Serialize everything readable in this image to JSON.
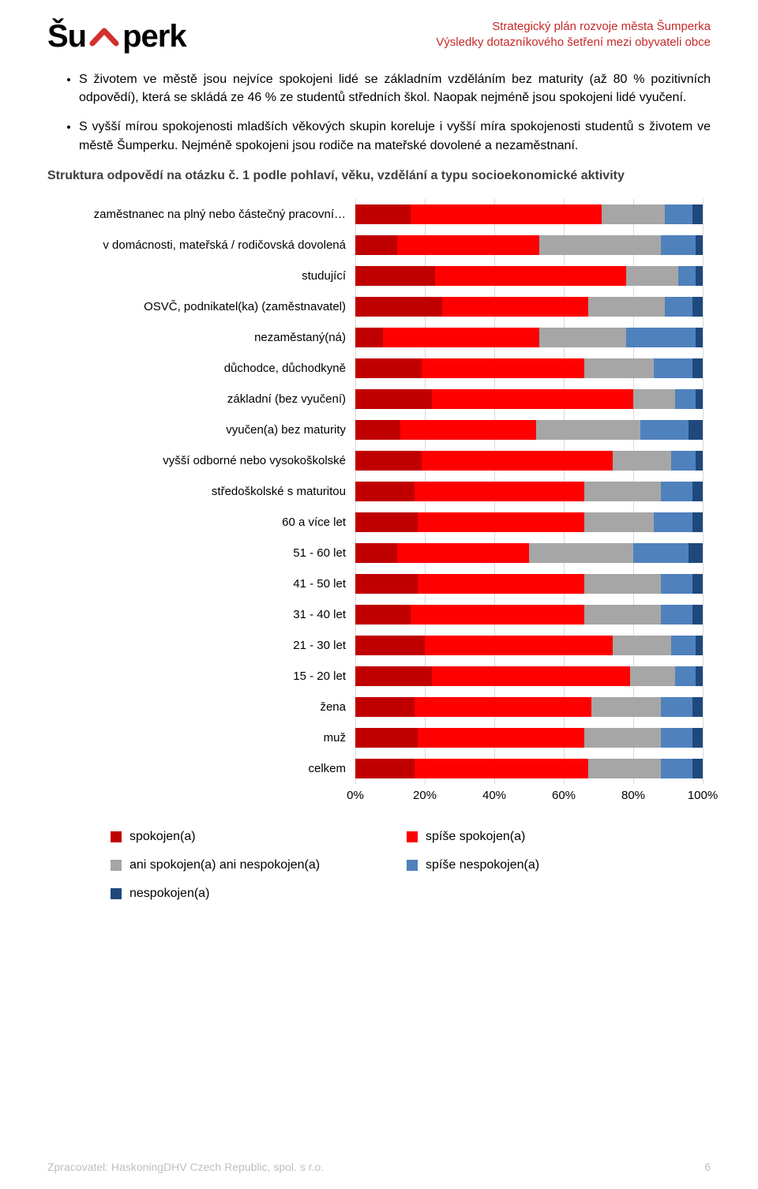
{
  "header": {
    "logo_prefix": "Šu",
    "logo_suffix": "perk",
    "logo_roof_color": "#d32f2f",
    "title_line1": "Strategický plán rozvoje města Šumperka",
    "title_line2": "Výsledky dotazníkového šetření mezi obyvateli obce",
    "title_color": "#c62828"
  },
  "bullets": [
    "S životem ve městě jsou nejvíce spokojeni lidé se základním vzděláním bez maturity (až 80 % pozitivních odpovědí), která se skládá ze 46 % ze studentů středních škol. Naopak nejméně jsou spokojeni lidé vyučení.",
    "S vyšší mírou spokojenosti mladších věkových skupin koreluje i vyšší míra spokojenosti studentů s životem ve městě Šumperku. Nejméně spokojeni jsou rodiče na mateřské dovolené a nezaměstnaní."
  ],
  "chart": {
    "title": "Struktura odpovědí na otázku č. 1 podle pohlaví, věku, vzdělání a typu socioekonomické aktivity",
    "type": "stacked_bar_horizontal",
    "x_ticks": [
      "0%",
      "20%",
      "40%",
      "60%",
      "80%",
      "100%"
    ],
    "x_tick_positions": [
      0,
      20,
      40,
      60,
      80,
      100
    ],
    "grid_color": "#d9d9d9",
    "background_color": "#ffffff",
    "label_fontsize": 15,
    "axis_fontsize": 15,
    "series": [
      {
        "key": "spokojen",
        "label": "spokojen(a)",
        "color": "#c00000"
      },
      {
        "key": "spise_spokojen",
        "label": "spíše spokojen(a)",
        "color": "#ff0000"
      },
      {
        "key": "ani_ani",
        "label": "ani spokojen(a) ani nespokojen(a)",
        "color": "#a6a6a6"
      },
      {
        "key": "spise_nespokojen",
        "label": "spíše nespokojen(a)",
        "color": "#4f81bd"
      },
      {
        "key": "nespokojen",
        "label": "nespokojen(a)",
        "color": "#1f497d"
      }
    ],
    "categories": [
      {
        "label": "zaměstnanec na plný nebo částečný pracovní…",
        "values": [
          16,
          55,
          18,
          8,
          3
        ]
      },
      {
        "label": "v domácnosti, mateřská / rodičovská dovolená",
        "values": [
          12,
          41,
          35,
          10,
          2
        ]
      },
      {
        "label": "studující",
        "values": [
          23,
          55,
          15,
          5,
          2
        ]
      },
      {
        "label": "OSVČ, podnikatel(ka) (zaměstnavatel)",
        "values": [
          25,
          42,
          22,
          8,
          3
        ]
      },
      {
        "label": "nezaměstaný(ná)",
        "values": [
          8,
          45,
          25,
          20,
          2
        ]
      },
      {
        "label": "důchodce, důchodkyně",
        "values": [
          19,
          47,
          20,
          11,
          3
        ]
      },
      {
        "label": "základní (bez vyučení)",
        "values": [
          22,
          58,
          12,
          6,
          2
        ]
      },
      {
        "label": "vyučen(a) bez maturity",
        "values": [
          13,
          39,
          30,
          14,
          4
        ]
      },
      {
        "label": "vyšší odborné nebo vysokoškolské",
        "values": [
          19,
          55,
          17,
          7,
          2
        ]
      },
      {
        "label": "středoškolské s maturitou",
        "values": [
          17,
          49,
          22,
          9,
          3
        ]
      },
      {
        "label": "60 a více let",
        "values": [
          18,
          48,
          20,
          11,
          3
        ]
      },
      {
        "label": "51 - 60 let",
        "values": [
          12,
          38,
          30,
          16,
          4
        ]
      },
      {
        "label": "41 - 50 let",
        "values": [
          18,
          48,
          22,
          9,
          3
        ]
      },
      {
        "label": "31 - 40 let",
        "values": [
          16,
          50,
          22,
          9,
          3
        ]
      },
      {
        "label": "21 - 30 let",
        "values": [
          20,
          54,
          17,
          7,
          2
        ]
      },
      {
        "label": "15 - 20 let",
        "values": [
          22,
          57,
          13,
          6,
          2
        ]
      },
      {
        "label": "žena",
        "values": [
          17,
          51,
          20,
          9,
          3
        ]
      },
      {
        "label": "muž",
        "values": [
          18,
          48,
          22,
          9,
          3
        ]
      },
      {
        "label": "celkem",
        "values": [
          17,
          50,
          21,
          9,
          3
        ]
      }
    ]
  },
  "footer": {
    "processor": "Zpracovatel: HaskoningDHV Czech Republic, spol. s r.o.",
    "page_number": "6",
    "text_color": "#bfbfbf"
  }
}
